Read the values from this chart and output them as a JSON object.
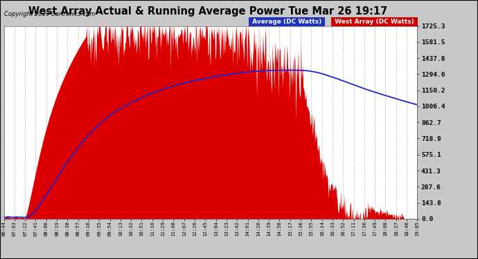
{
  "title": "West Array Actual & Running Average Power Tue Mar 26 19:17",
  "copyright": "Copyright 2019 Cartronics.com",
  "legend_avg": "Average (DC Watts)",
  "legend_west": "West Array (DC Watts)",
  "yticks": [
    0.0,
    143.8,
    287.6,
    431.3,
    575.1,
    718.9,
    862.7,
    1006.4,
    1150.2,
    1294.0,
    1437.8,
    1581.5,
    1725.3
  ],
  "ymax": 1725.3,
  "bg_color": "#c8c8c8",
  "plot_bg": "#ffffff",
  "grid_color": "#888888",
  "fill_color": "#dd0000",
  "avg_line_color": "#2222cc",
  "xtick_labels": [
    "06:44",
    "07:03",
    "07:22",
    "07:41",
    "08:00",
    "08:19",
    "08:38",
    "08:57",
    "09:16",
    "09:35",
    "09:54",
    "10:13",
    "10:32",
    "10:51",
    "11:10",
    "11:29",
    "11:48",
    "12:07",
    "12:26",
    "12:45",
    "13:04",
    "13:23",
    "13:42",
    "14:01",
    "14:20",
    "14:39",
    "14:58",
    "15:17",
    "15:36",
    "15:55",
    "16:14",
    "16:33",
    "16:52",
    "17:11",
    "17:30",
    "17:49",
    "18:08",
    "18:27",
    "18:46",
    "19:05"
  ],
  "n_points": 740
}
